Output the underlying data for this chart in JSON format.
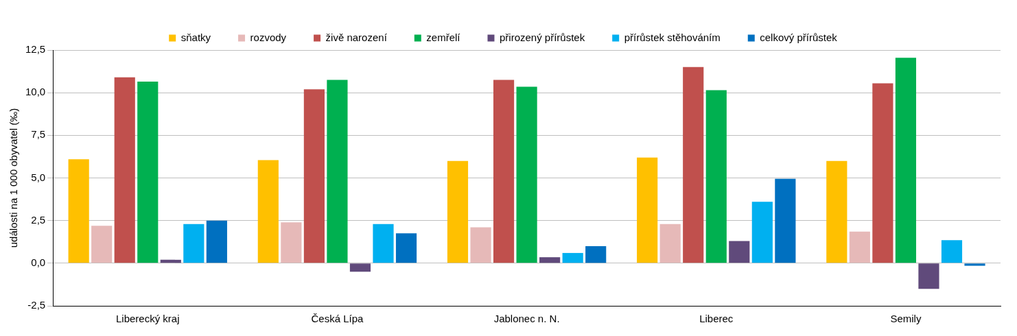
{
  "chart_data": {
    "type": "bar",
    "ylabel": "události na 1 000 obyvatel (‰)",
    "categories": [
      "Liberecký kraj",
      "Česká Lípa",
      "Jablonec n. N.",
      "Liberec",
      "Semily"
    ],
    "series": [
      {
        "name": "sňatky",
        "color": "#ffc000",
        "values": [
          6.1,
          6.05,
          6.0,
          6.2,
          6.0
        ]
      },
      {
        "name": "rozvody",
        "color": "#e6b9b8",
        "values": [
          2.2,
          2.4,
          2.1,
          2.3,
          1.85
        ]
      },
      {
        "name": "živě narození",
        "color": "#c0504d",
        "values": [
          10.9,
          10.2,
          10.75,
          11.5,
          10.55
        ]
      },
      {
        "name": "zemřelí",
        "color": "#00b050",
        "values": [
          10.65,
          10.75,
          10.35,
          10.15,
          12.05
        ]
      },
      {
        "name": "přirozený přírůstek",
        "color": "#604a7b",
        "values": [
          0.2,
          -0.5,
          0.35,
          1.3,
          -1.5
        ]
      },
      {
        "name": "přírůstek stěhováním",
        "color": "#00b0f0",
        "values": [
          2.3,
          2.3,
          0.6,
          3.6,
          1.35
        ]
      },
      {
        "name": "celkový přírůstek",
        "color": "#0070c0",
        "values": [
          2.5,
          1.75,
          1.0,
          4.95,
          -0.15
        ]
      }
    ],
    "ylim": [
      -2.5,
      12.5
    ],
    "yticks": [
      {
        "value": -2.5,
        "label": "-2,5"
      },
      {
        "value": 0,
        "label": "0,0"
      },
      {
        "value": 2.5,
        "label": "2,5"
      },
      {
        "value": 5,
        "label": "5,0"
      },
      {
        "value": 7.5,
        "label": "7,5"
      },
      {
        "value": 10,
        "label": "10,0"
      },
      {
        "value": 12.5,
        "label": "12,5"
      }
    ],
    "grid": "y",
    "legend": "top"
  }
}
